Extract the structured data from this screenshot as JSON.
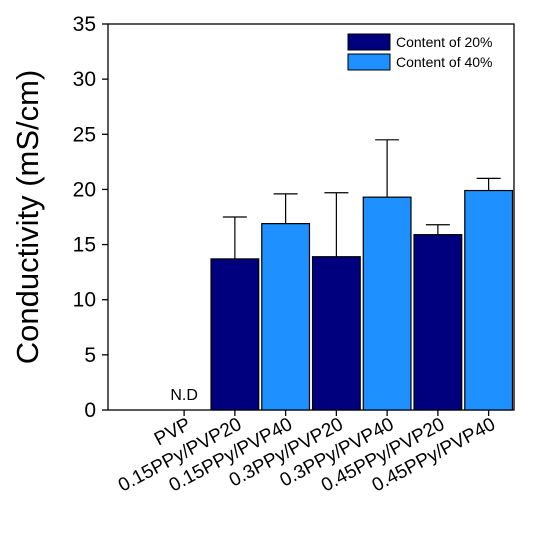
{
  "chart_data": {
    "type": "bar",
    "categories": [
      "PVP",
      "0.15PPy/PVP20",
      "0.15PPy/PVP40",
      "0.3PPy/PVP20",
      "0.3PPy/PVP40",
      "0.45PPy/PVP20",
      "0.45PPy/PVP40"
    ],
    "bars": [
      {
        "category": "PVP",
        "value": null,
        "error": null,
        "series": "none"
      },
      {
        "category": "0.15PPy/PVP20",
        "value": 13.7,
        "error": 3.8,
        "series": "Content of 20%"
      },
      {
        "category": "0.15PPy/PVP40",
        "value": 16.9,
        "error": 2.7,
        "series": "Content of 40%"
      },
      {
        "category": "0.3PPy/PVP20",
        "value": 13.9,
        "error": 5.8,
        "series": "Content of 20%"
      },
      {
        "category": "0.3PPy/PVP40",
        "value": 19.3,
        "error": 5.2,
        "series": "Content of 40%"
      },
      {
        "category": "0.45PPy/PVP20",
        "value": 15.9,
        "error": 0.9,
        "series": "Content of 20%"
      },
      {
        "category": "0.45PPy/PVP40",
        "value": 19.9,
        "error": 1.1,
        "series": "Content of 40%"
      }
    ],
    "series": [
      {
        "name": "Content of 20%",
        "color": "#00007f"
      },
      {
        "name": "Content of 40%",
        "color": "#1e90ff"
      }
    ],
    "annotations": [
      {
        "category": "PVP",
        "text": "N.D"
      }
    ],
    "title": "",
    "xlabel": "",
    "ylabel": "Conductivity (mS/cm)",
    "ylim": [
      0,
      35
    ],
    "yticks": [
      0,
      5,
      10,
      15,
      20,
      25,
      30,
      35
    ],
    "grid": false,
    "legend_position": "top-right"
  }
}
